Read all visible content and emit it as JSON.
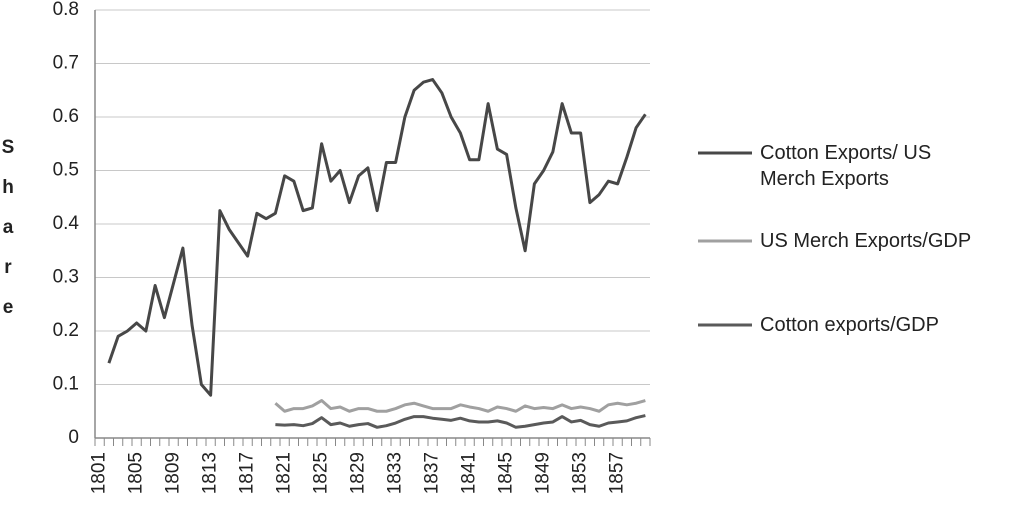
{
  "chart_data": {
    "type": "line",
    "y_label": "Share",
    "categories": [
      "1801",
      null,
      null,
      null,
      "1805",
      null,
      null,
      null,
      "1809",
      null,
      null,
      null,
      "1813",
      null,
      null,
      null,
      "1817",
      null,
      null,
      null,
      "1821",
      null,
      null,
      null,
      "1825",
      null,
      null,
      null,
      "1829",
      null,
      null,
      null,
      "1833",
      null,
      null,
      null,
      "1837",
      null,
      null,
      null,
      "1841",
      null,
      null,
      null,
      "1845",
      null,
      null,
      null,
      "1849",
      null,
      null,
      null,
      "1853",
      null,
      null,
      null,
      "1857",
      null,
      null,
      null
    ],
    "series": [
      {
        "name": "Cotton Exports/ US Merch Exports",
        "color": "#474747",
        "values": [
          null,
          0.14,
          0.19,
          0.2,
          0.215,
          0.2,
          0.285,
          0.225,
          0.29,
          0.355,
          0.21,
          0.1,
          0.08,
          0.425,
          0.39,
          0.365,
          0.34,
          0.42,
          0.41,
          0.42,
          0.49,
          0.48,
          0.425,
          0.43,
          0.55,
          0.48,
          0.5,
          0.44,
          0.49,
          0.505,
          0.425,
          0.515,
          0.515,
          0.6,
          0.65,
          0.665,
          0.67,
          0.645,
          0.6,
          0.57,
          0.52,
          0.52,
          0.625,
          0.54,
          0.53,
          0.43,
          0.35,
          0.475,
          0.5,
          0.535,
          0.625,
          0.57,
          0.57,
          0.44,
          0.455,
          0.48,
          0.475,
          0.525,
          0.58,
          0.605
        ]
      },
      {
        "name": "US Merch Exports/GDP",
        "color": "#a0a0a0",
        "values": [
          null,
          null,
          null,
          null,
          null,
          null,
          null,
          null,
          null,
          null,
          null,
          null,
          null,
          null,
          null,
          null,
          null,
          null,
          null,
          0.065,
          0.05,
          0.055,
          0.055,
          0.06,
          0.07,
          0.055,
          0.058,
          0.05,
          0.055,
          0.055,
          0.05,
          0.05,
          0.055,
          0.062,
          0.065,
          0.06,
          0.055,
          0.055,
          0.055,
          0.062,
          0.058,
          0.055,
          0.05,
          0.058,
          0.055,
          0.05,
          0.06,
          0.055,
          0.057,
          0.055,
          0.062,
          0.055,
          0.058,
          0.055,
          0.05,
          0.062,
          0.065,
          0.062,
          0.065,
          0.07
        ]
      },
      {
        "name": "Cotton exports/GDP",
        "color": "#5a5a5a",
        "values": [
          null,
          null,
          null,
          null,
          null,
          null,
          null,
          null,
          null,
          null,
          null,
          null,
          null,
          null,
          null,
          null,
          null,
          null,
          null,
          0.025,
          0.024,
          0.025,
          0.023,
          0.027,
          0.038,
          0.025,
          0.028,
          0.022,
          0.025,
          0.027,
          0.02,
          0.023,
          0.028,
          0.035,
          0.04,
          0.04,
          0.037,
          0.035,
          0.033,
          0.037,
          0.032,
          0.03,
          0.03,
          0.032,
          0.028,
          0.02,
          0.022,
          0.025,
          0.028,
          0.03,
          0.04,
          0.03,
          0.033,
          0.025,
          0.022,
          0.028,
          0.03,
          0.032,
          0.038,
          0.042
        ]
      }
    ],
    "ylim": [
      0,
      0.8
    ],
    "yticks": [
      0,
      0.1,
      0.2,
      0.3,
      0.4,
      0.5,
      0.6,
      0.7,
      0.8
    ],
    "grid": true
  }
}
